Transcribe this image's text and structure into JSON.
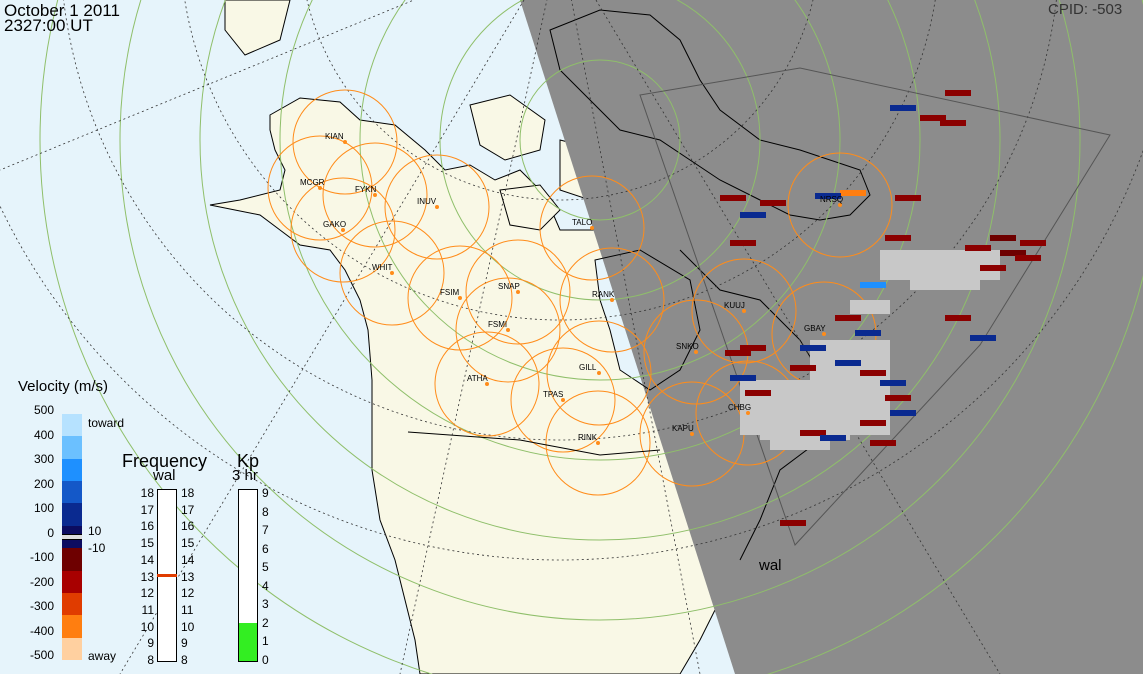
{
  "header": {
    "date": "October  1 2011",
    "time": "2327:00 UT",
    "cpid": "CPID:  -503"
  },
  "stations": [
    {
      "name": "KIAN"
    },
    {
      "name": "MCGR"
    },
    {
      "name": "FYKN"
    },
    {
      "name": "INUV"
    },
    {
      "name": "GAKO"
    },
    {
      "name": "WHIT"
    },
    {
      "name": "FSIM"
    },
    {
      "name": "SNAP"
    },
    {
      "name": "FSMI"
    },
    {
      "name": "RANK"
    },
    {
      "name": "TALO"
    },
    {
      "name": "ATHA"
    },
    {
      "name": "TPAS"
    },
    {
      "name": "GILL"
    },
    {
      "name": "RINK"
    },
    {
      "name": "KAPU"
    },
    {
      "name": "SNKO"
    },
    {
      "name": "CHBG"
    },
    {
      "name": "KUUJ"
    },
    {
      "name": "GBAY"
    },
    {
      "name": "NRSQ"
    }
  ],
  "radar_label": "wal",
  "velocity_legend": {
    "title": "Velocity (m/s)",
    "ticks": [
      "500",
      "400",
      "300",
      "200",
      "100",
      "0",
      "-100",
      "-200",
      "-300",
      "-400",
      "-500"
    ],
    "toward": "toward",
    "away": "away",
    "plus10": "10",
    "minus10": "-10",
    "colors": [
      "#b6e2ff",
      "#6bc0ff",
      "#1e90ff",
      "#1458c8",
      "#0a2a90",
      "#0c0c60",
      "#6e0000",
      "#a80000",
      "#e03c00",
      "#ff7e10",
      "#ffd0a0"
    ]
  },
  "frequency_legend": {
    "title": "Frequency",
    "subtitle": "wal",
    "ticks": [
      "18",
      "17",
      "16",
      "15",
      "14",
      "13",
      "12",
      "11",
      "10",
      "9",
      "8"
    ],
    "current": 13.2
  },
  "kp_legend": {
    "title": "Kp",
    "subtitle": "3 hr",
    "ticks": [
      "9",
      "8",
      "7",
      "6",
      "5",
      "4",
      "3",
      "2",
      "1",
      "0"
    ],
    "value": 2
  },
  "colors": {
    "ocean": "#e6f4fb",
    "land": "#f9f8e6",
    "night": "#8c8c8c",
    "fov_circle": "#ff8c1a",
    "grid": "#8fbf6a",
    "ground_scatter": "#c8c8c8",
    "kp_fill": "#33ee22"
  }
}
